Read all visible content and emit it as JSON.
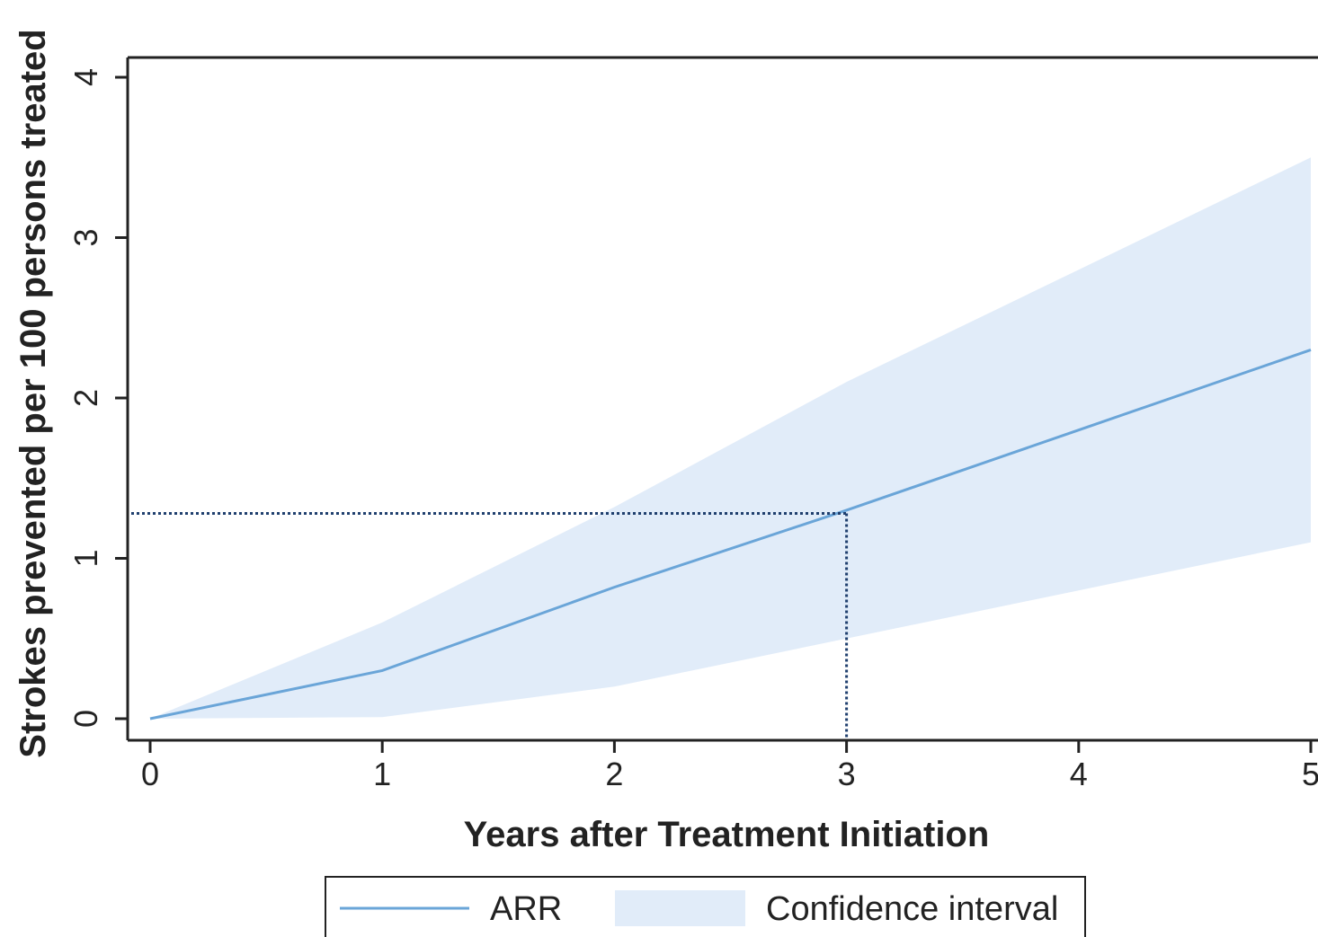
{
  "chart_data": {
    "type": "area",
    "xlabel": "Years after Treatment Initiation",
    "ylabel": "Strokes prevented per 100 persons treated",
    "xlim": [
      0,
      5
    ],
    "ylim": [
      0,
      4
    ],
    "xticks": [
      "0",
      "1",
      "2",
      "3",
      "4",
      "5"
    ],
    "yticks": [
      "0",
      "1",
      "2",
      "3",
      "4"
    ],
    "grid": false,
    "x": [
      0,
      1,
      2,
      3,
      4,
      5
    ],
    "series": [
      {
        "name": "ARR",
        "type": "line",
        "values": [
          0,
          0.3,
          0.82,
          1.3,
          1.8,
          2.3
        ],
        "color": "#6aa5d8"
      },
      {
        "name": "Confidence interval",
        "type": "band",
        "lower": [
          0,
          0.01,
          0.2,
          0.5,
          0.8,
          1.1
        ],
        "upper": [
          0,
          0.6,
          1.32,
          2.1,
          2.8,
          3.5
        ],
        "color": "#e1ecf9"
      }
    ],
    "reference_point": {
      "x": 3,
      "y": 1.28,
      "style": "dotted",
      "color": "#1f3f6e"
    },
    "legend": {
      "placement": "bottom",
      "entries": [
        "ARR",
        "Confidence interval"
      ]
    }
  }
}
